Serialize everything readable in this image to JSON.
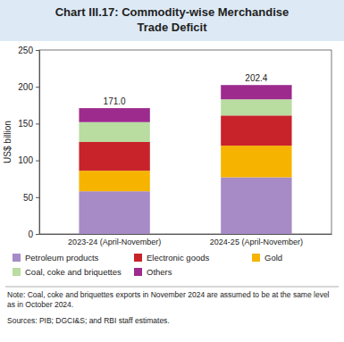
{
  "chart_data": {
    "type": "bar",
    "stacked": true,
    "title": "Chart III.17: Commodity-wise Merchandise Trade Deficit",
    "y_label": "US$ billion",
    "categories": [
      "2023-24 (April-November)",
      "2024-25 (April-November)"
    ],
    "series": [
      {
        "name": "Petroleum products",
        "color": "#a68bc6",
        "values": [
          58,
          77
        ]
      },
      {
        "name": "Gold",
        "color": "#f6b400",
        "values": [
          28,
          43
        ]
      },
      {
        "name": "Electronic goods",
        "color": "#c8232b",
        "values": [
          39,
          41
        ]
      },
      {
        "name": "Coal, coke and briquettes",
        "color": "#b9dca1",
        "values": [
          27,
          22
        ]
      },
      {
        "name": "Others",
        "color": "#9d2b8e",
        "values": [
          19,
          19.4
        ]
      }
    ],
    "legend_order": [
      "Petroleum products",
      "Electronic goods",
      "Gold",
      "Coal, coke and briquettes",
      "Others"
    ],
    "totals": {
      "values": [
        171,
        202.4
      ],
      "value_labels": [
        "171.0",
        "202.4"
      ]
    },
    "ylim": [
      0,
      250
    ],
    "yticks": [
      0,
      50,
      100,
      150,
      200,
      250
    ],
    "grid": false,
    "legend": "bottom",
    "note": "Note: Coal, coke and briquettes exports in November 2024 are assumed to be at the same level as in October 2024.",
    "source": "Sources: PIB; DGCI&S; and RBI staff estimates."
  }
}
